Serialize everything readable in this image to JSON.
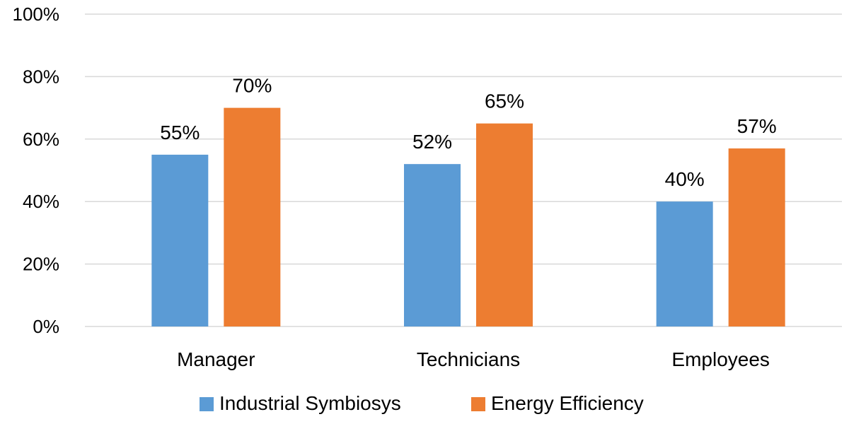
{
  "chart_data": {
    "type": "bar",
    "title": "",
    "xlabel": "",
    "ylabel": "",
    "categories": [
      "Manager",
      "Technicians",
      "Employees"
    ],
    "series": [
      {
        "name": "Industrial Symbiosys",
        "color": "#5b9bd5",
        "values": [
          55,
          52,
          40
        ],
        "labels": [
          "55%",
          "52%",
          "40%"
        ]
      },
      {
        "name": "Energy Efficiency",
        "color": "#ed7d31",
        "values": [
          70,
          65,
          57
        ],
        "labels": [
          "70%",
          "65%",
          "57%"
        ]
      }
    ],
    "ylim": [
      0,
      100
    ],
    "yticks": [
      0,
      20,
      40,
      60,
      80,
      100
    ],
    "ytick_labels": [
      "0%",
      "20%",
      "40%",
      "60%",
      "80%",
      "100%"
    ],
    "grid": true,
    "legend_position": "bottom",
    "gridline_color": "#d9d9d9"
  }
}
